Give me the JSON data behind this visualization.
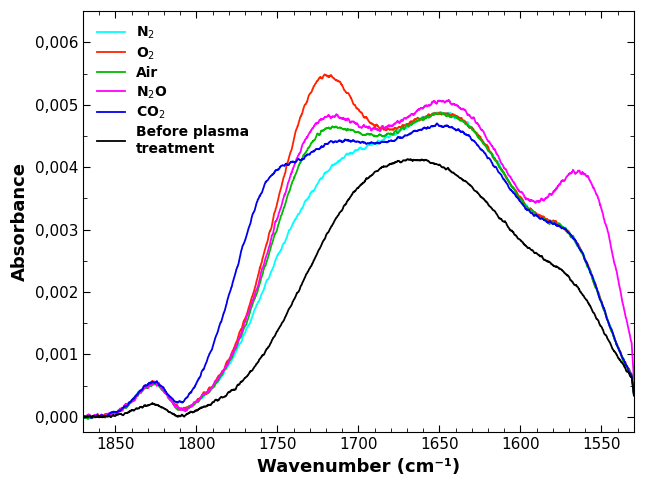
{
  "title": "",
  "xlabel": "Wavenumber (cm⁻¹)",
  "ylabel": "Absorbance",
  "xlim": [
    1870,
    1530
  ],
  "ylim": [
    -0.00025,
    0.0065
  ],
  "yticks": [
    0.0,
    0.001,
    0.002,
    0.003,
    0.004,
    0.005,
    0.006
  ],
  "ytick_labels": [
    "0,000",
    "0,001",
    "0,002",
    "0,003",
    "0,004",
    "0,005",
    "0,006"
  ],
  "xticks": [
    1850,
    1800,
    1750,
    1700,
    1650,
    1600,
    1550
  ],
  "legend": [
    {
      "label": "N$_2$",
      "color": "#00FFFF",
      "lw": 1.3
    },
    {
      "label": "O$_2$",
      "color": "#FF2200",
      "lw": 1.3
    },
    {
      "label": "Air",
      "color": "#00BB00",
      "lw": 1.3
    },
    {
      "label": "N$_2$O",
      "color": "#FF00FF",
      "lw": 1.3
    },
    {
      "label": "CO$_2$",
      "color": "#0000EE",
      "lw": 1.3
    },
    {
      "label": "Before plasma\ntreatment",
      "color": "#000000",
      "lw": 1.3
    }
  ],
  "background_color": "white"
}
